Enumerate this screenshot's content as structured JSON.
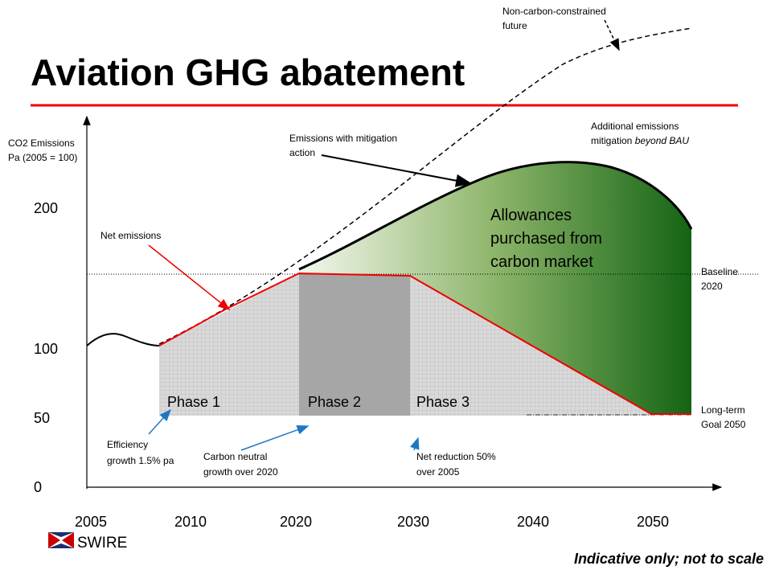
{
  "title": "Aviation GHG abatement",
  "y_axis_label": [
    "CO2 Emissions",
    "Pa (2005 = 100)"
  ],
  "y_ticks": [
    "200",
    "100",
    "50",
    "0"
  ],
  "x_ticks": [
    "2005",
    "2010",
    "2020",
    "2030",
    "2040",
    "2050"
  ],
  "annotations": {
    "bau": [
      "Non-carbon-constrained",
      "future"
    ],
    "mitigation": [
      "Emissions with mitigation",
      "action"
    ],
    "additional": [
      "Additional emissions",
      "mitigation ",
      "beyond BAU"
    ],
    "net": "Net emissions",
    "allowances": [
      "Allowances",
      "purchased from",
      "carbon market"
    ],
    "baseline": [
      "Baseline",
      "2020"
    ],
    "goal": [
      "Long-term",
      "Goal 2050"
    ],
    "efficiency": [
      "Efficiency",
      "growth 1.5% pa"
    ],
    "neutral": [
      "Carbon neutral",
      "growth over 2020"
    ],
    "reduction": [
      "Net reduction 50%",
      "over 2005"
    ]
  },
  "phases": [
    "Phase 1",
    "Phase 2",
    "Phase 3"
  ],
  "logo": "SWIRE",
  "footnote": "Indicative only; not to scale"
}
